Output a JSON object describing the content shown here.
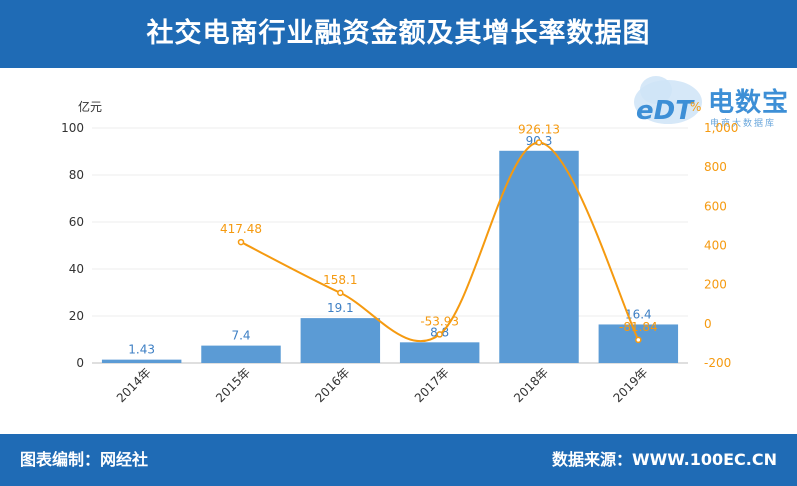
{
  "header": {
    "title": "社交电商行业融资金额及其增长率数据图"
  },
  "footer": {
    "left": "图表编制：网经社",
    "right": "数据来源：WWW.100EC.CN"
  },
  "logo": {
    "name": "电数宝",
    "sub": "电商大数据库",
    "mark": "eDT"
  },
  "chart_data": {
    "type": "bar",
    "categories": [
      "2014年",
      "2015年",
      "2016年",
      "2017年",
      "2018年",
      "2019年"
    ],
    "series": [
      {
        "values": [
          1.43,
          7.4,
          19.1,
          8.8,
          90.3,
          16.4
        ],
        "type": "bar",
        "axis": "left",
        "color": "#5b9bd5"
      },
      {
        "values": [
          null,
          417.48,
          158.1,
          -53.93,
          926.13,
          -81.84
        ],
        "type": "line",
        "axis": "right",
        "color": "#f59a10"
      }
    ],
    "value_labels": {
      "bar": [
        "1.43",
        "7.4",
        "19.1",
        "8.8",
        "90.3",
        "16.4"
      ],
      "line": [
        "",
        "417.48",
        "158.1",
        "-53.93",
        "926.13",
        "-81.84"
      ]
    },
    "ylabel_left": "亿元",
    "ylabel_right": "%",
    "ylim_left": [
      0,
      100
    ],
    "ylim_right": [
      -200,
      1000
    ],
    "yticks_left": [
      "0",
      "20",
      "40",
      "60",
      "80",
      "100"
    ],
    "yticks_right": [
      "-200",
      "0",
      "200",
      "400",
      "600",
      "800",
      "1,000"
    ],
    "grid": true
  }
}
